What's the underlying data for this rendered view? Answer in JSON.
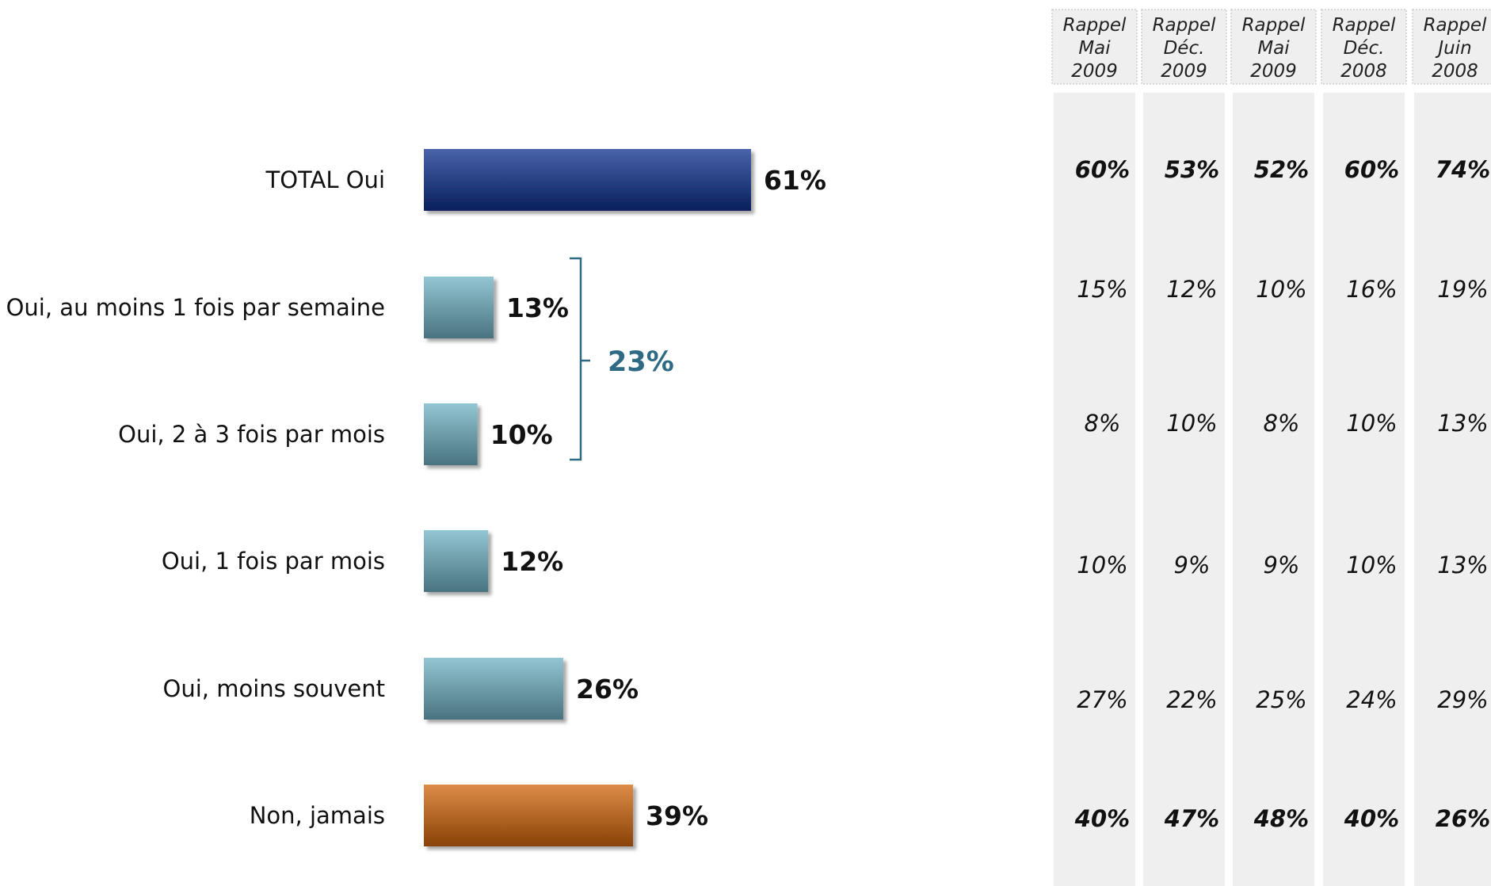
{
  "colors": {
    "total_oui": "#0c2f8e",
    "oui_detail": "#6fb1c3",
    "non_jamais": "#d2650a",
    "group_bracket": "#2e6a84",
    "history_column_bg": "#efefef"
  },
  "chart_data": {
    "type": "bar",
    "orientation": "horizontal",
    "categories": [
      "TOTAL Oui",
      "Oui, au moins 1 fois par semaine",
      "Oui, 2 à 3 fois par mois",
      "Oui, 1 fois par mois",
      "Oui, moins souvent",
      "Non, jamais"
    ],
    "values": [
      61,
      13,
      10,
      12,
      26,
      39
    ],
    "value_labels": [
      "61%",
      "13%",
      "10%",
      "12%",
      "26%",
      "39%"
    ],
    "value_unit": "%",
    "bar_colors": [
      "total_oui",
      "oui_detail",
      "oui_detail",
      "oui_detail",
      "oui_detail",
      "non_jamais"
    ],
    "grouping": {
      "label": "23%",
      "value": 23,
      "covers_categories": [
        1,
        2
      ]
    },
    "comparison_table": {
      "columns": [
        [
          "Rappel",
          "Mai",
          "2009"
        ],
        [
          "Rappel",
          "Déc.",
          "2009"
        ],
        [
          "Rappel",
          "Mai",
          "2009"
        ],
        [
          "Rappel",
          "Déc.",
          "2008"
        ],
        [
          "Rappel",
          "Juin",
          "2008"
        ]
      ],
      "rows": [
        [
          "60%",
          "53%",
          "52%",
          "60%",
          "74%"
        ],
        [
          "15%",
          "12%",
          "10%",
          "16%",
          "19%"
        ],
        [
          "8%",
          "10%",
          "8%",
          "10%",
          "13%"
        ],
        [
          "10%",
          "9%",
          "9%",
          "10%",
          "13%"
        ],
        [
          "27%",
          "22%",
          "25%",
          "24%",
          "29%"
        ],
        [
          "40%",
          "47%",
          "48%",
          "40%",
          "26%"
        ]
      ],
      "bold_rows": [
        0,
        5
      ]
    },
    "grid": false,
    "legend": "none"
  }
}
